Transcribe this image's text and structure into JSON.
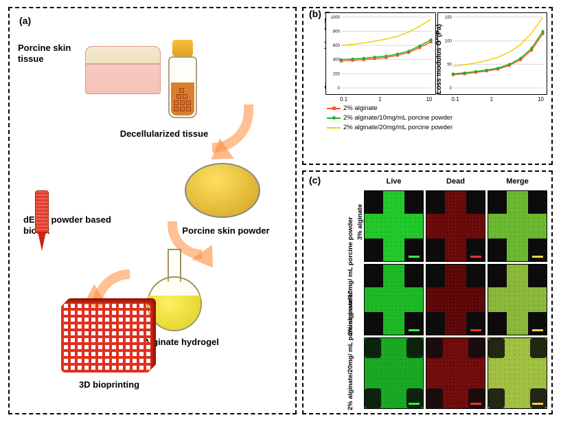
{
  "panels": {
    "a": {
      "label": "(a)"
    },
    "b": {
      "label": "(b)"
    },
    "c": {
      "label": "(c)"
    }
  },
  "panel_a": {
    "labels": {
      "tissue": "Porcine skin\ntissue",
      "decell": "Decellularized tissue",
      "powder": "Porcine skin powder",
      "hydrogel": "Alginate hydrogel",
      "bioink": "dECM powder based\nbioink",
      "print": "3D bioprinting"
    },
    "colors": {
      "tissue": "#f5c2b6",
      "arrow": "#ff8c3c",
      "bottle_cap": "#f0b030",
      "decell_cubes": "#d87028",
      "powder_fill": "#e6b030",
      "hydrogel_fill": "#e4e030",
      "print_red": "#e03020"
    }
  },
  "panel_b": {
    "chart1": {
      "type": "line",
      "ylabel": "Storage modulus G'(Pa)",
      "xscale": "log",
      "xlim": [
        0.1,
        10
      ],
      "ylim": [
        0,
        1000
      ],
      "yticks": [
        0,
        200,
        400,
        600,
        800,
        1000
      ],
      "xtick_labels": [
        "0.1",
        "1",
        "10"
      ],
      "grid_color": "#b0b0b0",
      "background_color": "#ffffff"
    },
    "chart2": {
      "type": "line",
      "ylabel": "Loss modulus G\"(Pa)",
      "xscale": "log",
      "xlim": [
        0.1,
        10
      ],
      "ylim": [
        0,
        150
      ],
      "yticks": [
        0,
        50,
        100,
        150
      ],
      "xtick_labels": [
        "0.1",
        "1",
        "10"
      ],
      "grid_color": "#b0b0b0",
      "background_color": "#ffffff"
    },
    "series": [
      {
        "name": "2% alginate",
        "color": "#ff5020",
        "marker": "square",
        "x": [
          0.1,
          0.18,
          0.32,
          0.56,
          1,
          1.8,
          3.2,
          5.6,
          10
        ],
        "y_storage": [
          380,
          390,
          400,
          415,
          430,
          460,
          500,
          570,
          650
        ],
        "y_loss": [
          28,
          30,
          33,
          36,
          40,
          48,
          60,
          80,
          115
        ]
      },
      {
        "name": "2% alginate/10mg/mL porcine powder",
        "color": "#20b030",
        "marker": "circle",
        "x": [
          0.1,
          0.18,
          0.32,
          0.56,
          1,
          1.8,
          3.2,
          5.6,
          10
        ],
        "y_storage": [
          400,
          410,
          420,
          435,
          450,
          480,
          520,
          595,
          680
        ],
        "y_loss": [
          30,
          32,
          35,
          38,
          42,
          50,
          63,
          84,
          120
        ]
      },
      {
        "name": "2% alginate/20mg/mL porcine powder",
        "color": "#f0d000",
        "marker": "none",
        "x": [
          0.1,
          0.18,
          0.32,
          0.56,
          1,
          1.8,
          3.2,
          5.6,
          10
        ],
        "y_storage": [
          600,
          615,
          635,
          660,
          690,
          730,
          790,
          870,
          970
        ],
        "y_loss": [
          46,
          49,
          53,
          58,
          65,
          76,
          92,
          116,
          150
        ]
      }
    ],
    "legend_labels": [
      "2% alginate",
      "2% alginate/10mg/mL\nporcine powder",
      "2% alginate/20mg/mL\nporcine powder"
    ],
    "label_fontsize": 10,
    "line_width": 1.5,
    "marker_size": 4
  },
  "panel_c": {
    "columns": [
      "Live",
      "Dead",
      "Merge"
    ],
    "rows": [
      {
        "label": "3% alginate",
        "colors": {
          "live_bg": "#20c828",
          "dead_bg": "#6a0808",
          "merge_bg": "#6ab830"
        }
      },
      {
        "label": "2%\nalginate/10mg/\nmL porcine\npowder",
        "colors": {
          "live_bg": "#1cb824",
          "dead_bg": "#5c0606",
          "merge_bg": "#8ab838"
        }
      },
      {
        "label": "2%\nalginate/20mg/\nmL porcine\npowder",
        "colors": {
          "live_bg": "#18a820",
          "dead_bg": "#700a0a",
          "merge_bg": "#a0c040"
        }
      }
    ],
    "corner_color": "#0c0c0c",
    "scalebar_colors": {
      "live": "#30ff40",
      "dead": "#ff3030",
      "merge": "#ffd040"
    },
    "cell_border": "#000000",
    "label_fontsize": 9.5
  }
}
